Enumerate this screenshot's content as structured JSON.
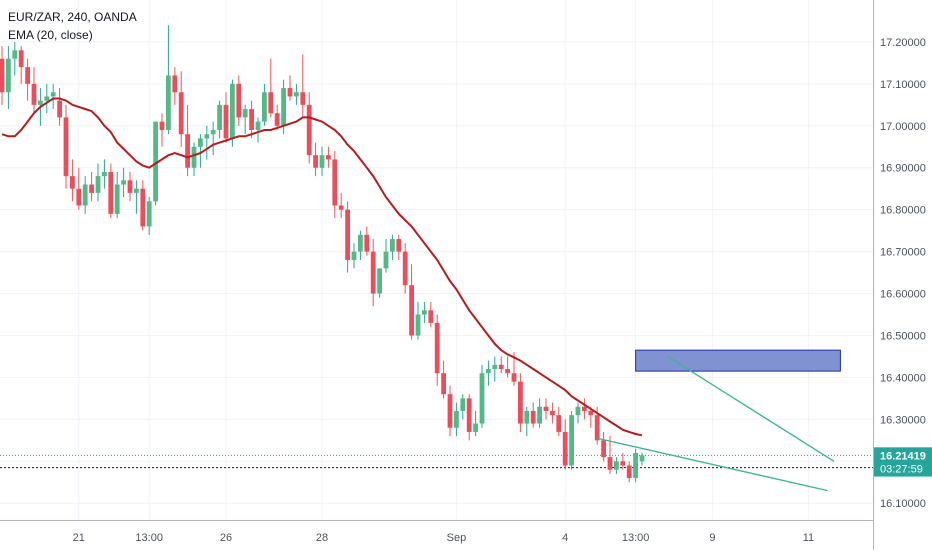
{
  "header": {
    "symbol_line": "EUR/ZAR, 240, OANDA",
    "indicator_line": "EMA (20, close)"
  },
  "colors": {
    "up": "#26a69a",
    "up_fill": "#53b987",
    "down": "#ef5350",
    "down_fill": "#eb4d5c",
    "ema": "#b71c1c",
    "grid": "#f0f3fa",
    "axis_text": "#4c525e",
    "zone_fill": "#6a7fc9",
    "zone_stroke": "#1f2fa6",
    "trendline": "#3cb58f",
    "price_tag_bg": "#26a69a",
    "timer_tag_bg": "#26a69a"
  },
  "chart_data": {
    "type": "candlestick",
    "title": "EUR/ZAR, 240, OANDA",
    "ylim": [
      16.06,
      17.3
    ],
    "yticks": [
      "17.20000",
      "17.10000",
      "17.00000",
      "16.90000",
      "16.80000",
      "16.70000",
      "16.60000",
      "16.50000",
      "16.40000",
      "16.30000",
      "16.20000",
      "16.10000"
    ],
    "ytick_values": [
      17.2,
      17.1,
      17.0,
      16.9,
      16.8,
      16.7,
      16.6,
      16.5,
      16.4,
      16.3,
      16.2,
      16.1
    ],
    "xticks": [
      {
        "label": "21",
        "index": 12
      },
      {
        "label": "13:00",
        "index": 23
      },
      {
        "label": "26",
        "index": 35
      },
      {
        "label": "28",
        "index": 50
      },
      {
        "label": "Sep",
        "index": 71
      },
      {
        "label": "4",
        "index": 88
      },
      {
        "label": "13:00",
        "index": 99
      },
      {
        "label": "9",
        "index": 111
      },
      {
        "label": "11",
        "index": 126
      }
    ],
    "grid": true,
    "last_price": "16.21419",
    "last_price_value": 16.21419,
    "countdown": "03:27:59",
    "countdown_level": 16.185,
    "candles": [
      [
        17.16,
        17.19,
        17.05,
        17.08
      ],
      [
        17.08,
        17.19,
        17.04,
        17.16
      ],
      [
        17.16,
        17.2,
        17.12,
        17.18
      ],
      [
        17.18,
        17.19,
        17.1,
        17.14
      ],
      [
        17.14,
        17.16,
        17.06,
        17.1
      ],
      [
        17.1,
        17.14,
        17.03,
        17.05
      ],
      [
        17.05,
        17.09,
        17.0,
        17.06
      ],
      [
        17.06,
        17.1,
        17.03,
        17.07
      ],
      [
        17.07,
        17.1,
        17.04,
        17.08
      ],
      [
        17.06,
        17.09,
        17.0,
        17.02
      ],
      [
        17.02,
        17.05,
        16.85,
        16.88
      ],
      [
        16.88,
        16.92,
        16.82,
        16.85
      ],
      [
        16.85,
        16.9,
        16.8,
        16.81
      ],
      [
        16.81,
        16.88,
        16.79,
        16.86
      ],
      [
        16.86,
        16.89,
        16.82,
        16.84
      ],
      [
        16.84,
        16.91,
        16.82,
        16.88
      ],
      [
        16.88,
        16.92,
        16.85,
        16.89
      ],
      [
        16.89,
        16.91,
        16.78,
        16.79
      ],
      [
        16.79,
        16.89,
        16.78,
        16.86
      ],
      [
        16.86,
        16.9,
        16.83,
        16.87
      ],
      [
        16.87,
        16.89,
        16.82,
        16.84
      ],
      [
        16.84,
        16.87,
        16.79,
        16.85
      ],
      [
        16.85,
        16.87,
        16.75,
        16.76
      ],
      [
        16.76,
        16.83,
        16.74,
        16.82
      ],
      [
        16.82,
        17.0,
        16.81,
        17.01
      ],
      [
        17.01,
        17.03,
        16.95,
        16.99
      ],
      [
        16.99,
        17.24,
        16.98,
        17.12
      ],
      [
        17.12,
        17.14,
        17.05,
        17.08
      ],
      [
        17.08,
        17.13,
        16.95,
        16.98
      ],
      [
        16.98,
        17.05,
        16.88,
        16.9
      ],
      [
        16.9,
        16.96,
        16.88,
        16.95
      ],
      [
        16.95,
        16.98,
        16.9,
        16.97
      ],
      [
        16.97,
        17.0,
        16.92,
        16.98
      ],
      [
        16.98,
        17.01,
        16.93,
        16.99
      ],
      [
        16.99,
        17.06,
        16.97,
        17.05
      ],
      [
        17.05,
        17.08,
        16.96,
        16.97
      ],
      [
        16.97,
        17.11,
        16.95,
        17.1
      ],
      [
        17.1,
        17.12,
        17.0,
        17.02
      ],
      [
        17.02,
        17.05,
        16.98,
        17.04
      ],
      [
        17.04,
        17.06,
        16.97,
        16.99
      ],
      [
        16.99,
        17.02,
        16.96,
        17.01
      ],
      [
        17.01,
        17.1,
        17.0,
        17.08
      ],
      [
        17.08,
        17.16,
        17.02,
        17.03
      ],
      [
        17.03,
        17.05,
        16.99,
        17.0
      ],
      [
        17.0,
        17.11,
        16.98,
        17.09
      ],
      [
        17.09,
        17.12,
        17.06,
        17.07
      ],
      [
        17.07,
        17.1,
        17.05,
        17.08
      ],
      [
        17.08,
        17.17,
        17.02,
        17.05
      ],
      [
        17.05,
        17.08,
        16.91,
        16.93
      ],
      [
        16.93,
        16.96,
        16.88,
        16.9
      ],
      [
        16.9,
        16.95,
        16.88,
        16.93
      ],
      [
        16.93,
        16.95,
        16.9,
        16.92
      ],
      [
        16.92,
        16.94,
        16.78,
        16.81
      ],
      [
        16.81,
        16.84,
        16.78,
        16.8
      ],
      [
        16.8,
        16.82,
        16.65,
        16.68
      ],
      [
        16.68,
        16.72,
        16.66,
        16.7
      ],
      [
        16.7,
        16.75,
        16.68,
        16.74
      ],
      [
        16.74,
        16.76,
        16.69,
        16.7
      ],
      [
        16.7,
        16.73,
        16.57,
        16.6
      ],
      [
        16.6,
        16.66,
        16.59,
        16.66
      ],
      [
        16.66,
        16.73,
        16.65,
        16.7
      ],
      [
        16.7,
        16.74,
        16.68,
        16.73
      ],
      [
        16.73,
        16.74,
        16.68,
        16.7
      ],
      [
        16.7,
        16.72,
        16.6,
        16.62
      ],
      [
        16.62,
        16.67,
        16.49,
        16.5
      ],
      [
        16.5,
        16.58,
        16.49,
        16.55
      ],
      [
        16.55,
        16.58,
        16.53,
        16.56
      ],
      [
        16.56,
        16.58,
        16.52,
        16.53
      ],
      [
        16.53,
        16.55,
        16.38,
        16.41
      ],
      [
        16.41,
        16.44,
        16.35,
        16.36
      ],
      [
        16.36,
        16.38,
        16.26,
        16.28
      ],
      [
        16.28,
        16.34,
        16.26,
        16.32
      ],
      [
        16.32,
        16.36,
        16.3,
        16.35
      ],
      [
        16.35,
        16.36,
        16.25,
        16.27
      ],
      [
        16.27,
        16.32,
        16.26,
        16.29
      ],
      [
        16.29,
        16.43,
        16.28,
        16.41
      ],
      [
        16.41,
        16.44,
        16.38,
        16.42
      ],
      [
        16.42,
        16.45,
        16.39,
        16.43
      ],
      [
        16.43,
        16.45,
        16.41,
        16.42
      ],
      [
        16.42,
        16.45,
        16.4,
        16.41
      ],
      [
        16.41,
        16.46,
        16.38,
        16.39
      ],
      [
        16.39,
        16.41,
        16.27,
        16.29
      ],
      [
        16.29,
        16.33,
        16.26,
        16.32
      ],
      [
        16.32,
        16.34,
        16.28,
        16.29
      ],
      [
        16.29,
        16.35,
        16.28,
        16.33
      ],
      [
        16.33,
        16.35,
        16.3,
        16.32
      ],
      [
        16.32,
        16.34,
        16.29,
        16.31
      ],
      [
        16.31,
        16.33,
        16.26,
        16.27
      ],
      [
        16.27,
        16.3,
        16.18,
        16.19
      ],
      [
        16.19,
        16.32,
        16.18,
        16.31
      ],
      [
        16.31,
        16.34,
        16.29,
        16.33
      ],
      [
        16.33,
        16.35,
        16.3,
        16.32
      ],
      [
        16.32,
        16.33,
        16.28,
        16.31
      ],
      [
        16.31,
        16.33,
        16.24,
        16.25
      ],
      [
        16.25,
        16.27,
        16.2,
        16.21
      ],
      [
        16.21,
        16.26,
        16.17,
        16.18
      ],
      [
        16.18,
        16.21,
        16.17,
        16.2
      ],
      [
        16.2,
        16.22,
        16.18,
        16.19
      ],
      [
        16.19,
        16.2,
        16.15,
        16.16
      ],
      [
        16.16,
        16.23,
        16.15,
        16.22
      ],
      [
        16.2,
        16.22,
        16.19,
        16.21419
      ]
    ],
    "ema_values": [
      16.98,
      16.975,
      16.975,
      16.99,
      17.01,
      17.03,
      17.045,
      17.055,
      17.065,
      17.065,
      17.06,
      17.05,
      17.045,
      17.04,
      17.035,
      17.02,
      17.0,
      16.985,
      16.96,
      16.945,
      16.93,
      16.915,
      16.905,
      16.9,
      16.91,
      16.92,
      16.93,
      16.935,
      16.93,
      16.925,
      16.93,
      16.935,
      16.945,
      16.955,
      16.96,
      16.965,
      16.97,
      16.975,
      16.975,
      16.98,
      16.985,
      16.99,
      16.99,
      16.995,
      17.0,
      17.005,
      17.01,
      17.02,
      17.02,
      17.015,
      17.01,
      17.0,
      16.99,
      16.975,
      16.955,
      16.94,
      16.92,
      16.9,
      16.88,
      16.855,
      16.83,
      16.81,
      16.79,
      16.775,
      16.76,
      16.74,
      16.72,
      16.7,
      16.68,
      16.655,
      16.63,
      16.61,
      16.585,
      16.56,
      16.54,
      16.52,
      16.5,
      16.48,
      16.465,
      16.455,
      16.448,
      16.44,
      16.43,
      16.42,
      16.41,
      16.4,
      16.39,
      16.38,
      16.37,
      16.355,
      16.345,
      16.335,
      16.325,
      16.315,
      16.305,
      16.295,
      16.285,
      16.275,
      16.27,
      16.265,
      16.262
    ],
    "zone": {
      "x_start_index": 99,
      "x_end_index": 131,
      "low": 16.415,
      "high": 16.465
    },
    "trendlines": [
      {
        "x1_index": 104,
        "y1": 16.45,
        "x2_index": 130,
        "y2": 16.2
      },
      {
        "x1_index": 93,
        "y1": 16.255,
        "x2_index": 129,
        "y2": 16.13
      }
    ]
  }
}
